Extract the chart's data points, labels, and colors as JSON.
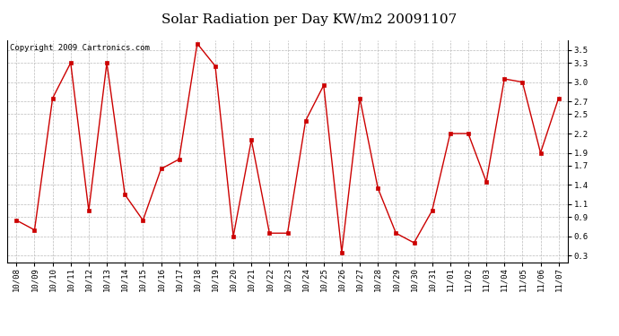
{
  "title": "Solar Radiation per Day KW/m2 20091107",
  "copyright": "Copyright 2009 Cartronics.com",
  "labels": [
    "10/08",
    "10/09",
    "10/10",
    "10/11",
    "10/12",
    "10/13",
    "10/14",
    "10/15",
    "10/16",
    "10/17",
    "10/18",
    "10/19",
    "10/20",
    "10/21",
    "10/22",
    "10/23",
    "10/24",
    "10/25",
    "10/26",
    "10/27",
    "10/28",
    "10/29",
    "10/30",
    "10/31",
    "11/01",
    "11/02",
    "11/03",
    "11/04",
    "11/05",
    "11/06",
    "11/07"
  ],
  "values": [
    0.85,
    0.7,
    2.75,
    3.3,
    1.0,
    3.3,
    1.25,
    0.85,
    1.65,
    1.8,
    3.6,
    3.25,
    0.6,
    2.1,
    0.65,
    0.65,
    2.4,
    2.95,
    0.35,
    2.75,
    1.35,
    0.65,
    0.5,
    1.0,
    2.2,
    2.2,
    1.45,
    3.05,
    3.0,
    1.9,
    2.75
  ],
  "line_color": "#cc0000",
  "marker_color": "#cc0000",
  "bg_color": "#ffffff",
  "grid_color": "#bbbbbb",
  "ylim": [
    0.2,
    3.65
  ],
  "yticks": [
    0.3,
    0.6,
    0.9,
    1.1,
    1.4,
    1.7,
    1.9,
    2.2,
    2.5,
    2.7,
    3.0,
    3.3,
    3.5
  ],
  "title_fontsize": 11,
  "copyright_fontsize": 6.5,
  "tick_fontsize": 6.5
}
